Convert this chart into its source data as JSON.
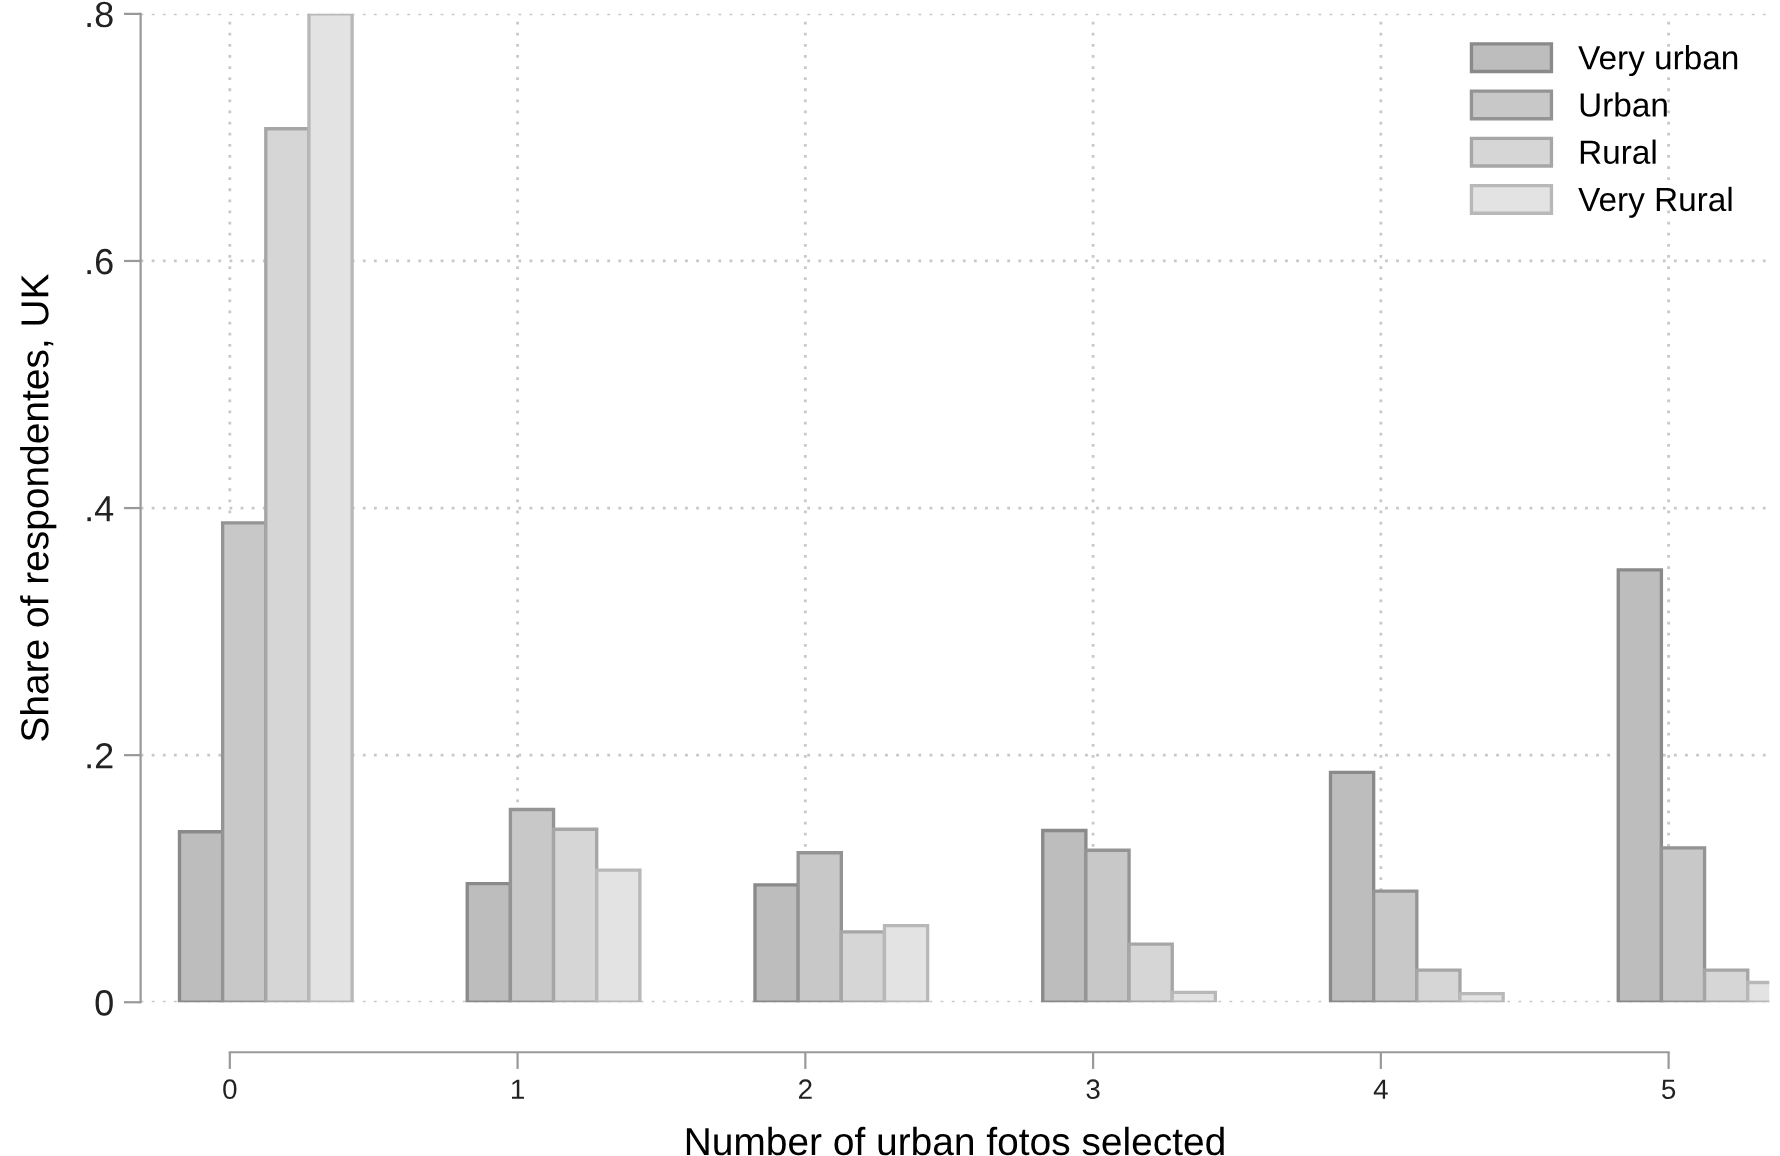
{
  "chart_data": {
    "type": "bar",
    "xlabel": "Number of urban fotos selected",
    "ylabel": "Share of respondentes, UK",
    "categories": [
      "0",
      "1",
      "2",
      "3",
      "4",
      "5"
    ],
    "series": [
      {
        "name": "Very urban",
        "color": "#bdbdbd",
        "values": [
          0.138,
          0.096,
          0.095,
          0.139,
          0.186,
          0.35
        ]
      },
      {
        "name": "Urban",
        "color": "#c8c8c8",
        "values": [
          0.388,
          0.156,
          0.121,
          0.123,
          0.09,
          0.125
        ]
      },
      {
        "name": "Rural",
        "color": "#d6d6d6",
        "values": [
          0.707,
          0.14,
          0.057,
          0.047,
          0.026,
          0.026
        ]
      },
      {
        "name": "Very Rural",
        "color": "#e3e3e3",
        "values": [
          0.8,
          0.107,
          0.062,
          0.008,
          0.007,
          0.016
        ]
      }
    ],
    "ylim": [
      0,
      0.8
    ],
    "yticks": [
      0,
      {
        "value": 0.2,
        "label": ".2"
      },
      {
        "value": 0.4,
        "label": ".4"
      },
      {
        "value": 0.6,
        "label": ".6"
      },
      {
        "value": 0.8,
        "label": ".8"
      }
    ],
    "grid": true,
    "legend": "top right"
  }
}
